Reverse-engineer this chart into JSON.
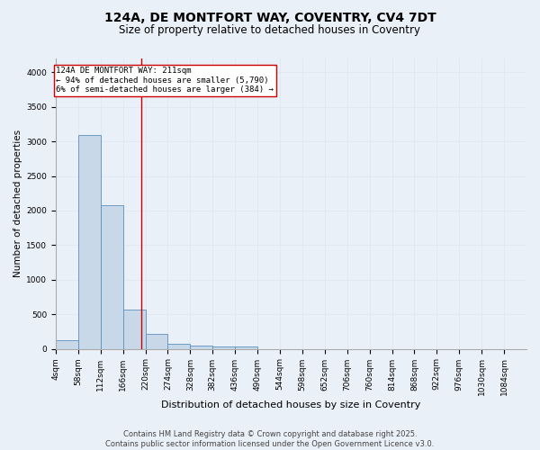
{
  "title": "124A, DE MONTFORT WAY, COVENTRY, CV4 7DT",
  "subtitle": "Size of property relative to detached houses in Coventry",
  "xlabel": "Distribution of detached houses by size in Coventry",
  "ylabel": "Number of detached properties",
  "bin_edges": [
    4,
    58,
    112,
    166,
    220,
    274,
    328,
    382,
    436,
    490,
    544,
    598,
    652,
    706,
    760,
    814,
    868,
    922,
    976,
    1030,
    1084
  ],
  "bar_heights": [
    130,
    3090,
    2080,
    570,
    210,
    70,
    50,
    40,
    30,
    0,
    0,
    0,
    0,
    0,
    0,
    0,
    0,
    0,
    0,
    0
  ],
  "bar_color": "#c8d8e8",
  "bar_edge_color": "#5a90c0",
  "vline_x": 211,
  "vline_color": "#cc0000",
  "annotation_line1": "124A DE MONTFORT WAY: 211sqm",
  "annotation_line2": "← 94% of detached houses are smaller (5,790)",
  "annotation_line3": "6% of semi-detached houses are larger (384) →",
  "annotation_box_color": "#ffffff",
  "annotation_box_edge_color": "#cc0000",
  "annotation_fontsize": 6.5,
  "ylim": [
    0,
    4200
  ],
  "yticks": [
    0,
    500,
    1000,
    1500,
    2000,
    2500,
    3000,
    3500,
    4000
  ],
  "background_color": "#eaf0f8",
  "grid_color": "#dde8f0",
  "footer_line1": "Contains HM Land Registry data © Crown copyright and database right 2025.",
  "footer_line2": "Contains public sector information licensed under the Open Government Licence v3.0.",
  "title_fontsize": 10,
  "subtitle_fontsize": 8.5,
  "xlabel_fontsize": 8,
  "ylabel_fontsize": 7.5,
  "tick_fontsize": 6.5,
  "footer_fontsize": 6
}
